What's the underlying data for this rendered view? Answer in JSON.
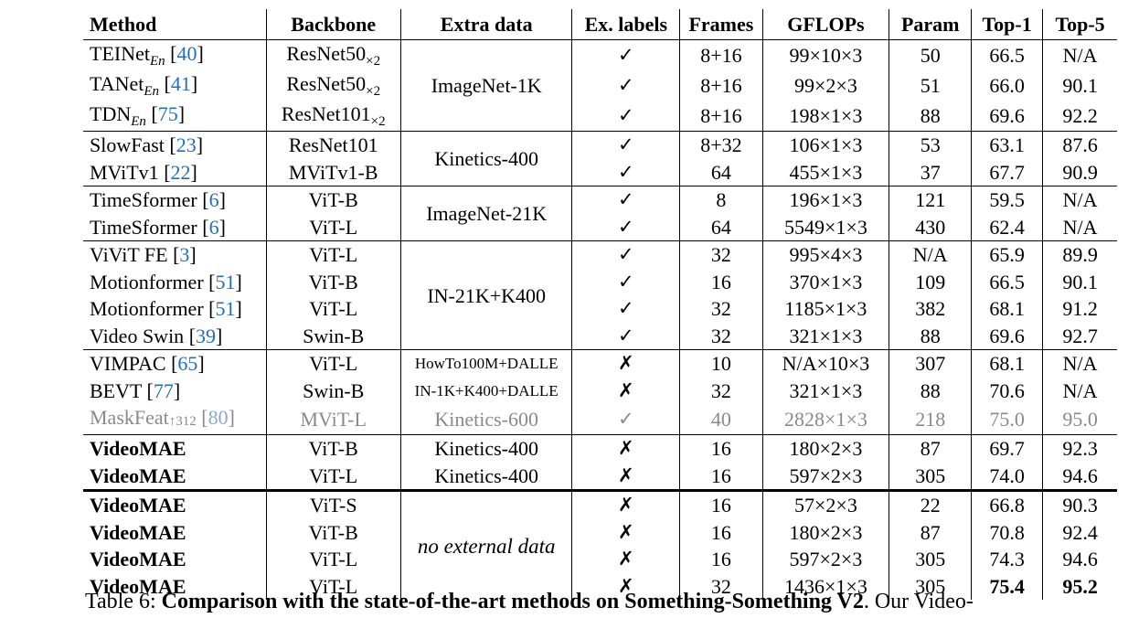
{
  "headers": {
    "method": "Method",
    "backbone": "Backbone",
    "extra": "Extra data",
    "exlabels": "Ex. labels",
    "frames": "Frames",
    "gflops": "GFLOPs",
    "param": "Param",
    "top1": "Top-1",
    "top5": "Top-5"
  },
  "rows": [
    {
      "name": "TEINet",
      "sub": "En",
      "cite": "40",
      "backbone": "ResNet50",
      "bsub": "×2",
      "extra": "ImageNet-1K",
      "lab": "✓",
      "frames": "8+16",
      "gflops": "99×10×3",
      "param": "50",
      "top1": "66.5",
      "top5": "N/A"
    },
    {
      "name": "TANet",
      "sub": "En",
      "cite": "41",
      "backbone": "ResNet50",
      "bsub": "×2",
      "lab": "✓",
      "frames": "8+16",
      "gflops": "99×2×3",
      "param": "51",
      "top1": "66.0",
      "top5": "90.1"
    },
    {
      "name": "TDN",
      "sub": "En",
      "cite": "75",
      "backbone": "ResNet101",
      "bsub": "×2",
      "lab": "✓",
      "frames": "8+16",
      "gflops": "198×1×3",
      "param": "88",
      "top1": "69.6",
      "top5": "92.2"
    },
    {
      "name": "SlowFast",
      "cite": "23",
      "backbone": "ResNet101",
      "extra": "Kinetics-400",
      "lab": "✓",
      "frames": "8+32",
      "gflops": "106×1×3",
      "param": "53",
      "top1": "63.1",
      "top5": "87.6"
    },
    {
      "name": "MViTv1",
      "cite": "22",
      "backbone": "MViTv1-B",
      "lab": "✓",
      "frames": "64",
      "gflops": "455×1×3",
      "param": "37",
      "top1": "67.7",
      "top5": "90.9"
    },
    {
      "name": "TimeSformer",
      "cite": "6",
      "backbone": "ViT-B",
      "extra": "ImageNet-21K",
      "lab": "✓",
      "frames": "8",
      "gflops": "196×1×3",
      "param": "121",
      "top1": "59.5",
      "top5": "N/A"
    },
    {
      "name": "TimeSformer",
      "cite": "6",
      "backbone": "ViT-L",
      "lab": "✓",
      "frames": "64",
      "gflops": "5549×1×3",
      "param": "430",
      "top1": "62.4",
      "top5": "N/A"
    },
    {
      "name": "ViViT FE",
      "cite": "3",
      "backbone": "ViT-L",
      "extra": "IN-21K+K400",
      "lab": "✓",
      "frames": "32",
      "gflops": "995×4×3",
      "param": "N/A",
      "top1": "65.9",
      "top5": "89.9"
    },
    {
      "name": "Motionformer",
      "cite": "51",
      "backbone": "ViT-B",
      "lab": "✓",
      "frames": "16",
      "gflops": "370×1×3",
      "param": "109",
      "top1": "66.5",
      "top5": "90.1"
    },
    {
      "name": "Motionformer",
      "cite": "51",
      "backbone": "ViT-L",
      "lab": "✓",
      "frames": "32",
      "gflops": "1185×1×3",
      "param": "382",
      "top1": "68.1",
      "top5": "91.2"
    },
    {
      "name": "Video Swin",
      "cite": "39",
      "backbone": "Swin-B",
      "lab": "✓",
      "frames": "32",
      "gflops": "321×1×3",
      "param": "88",
      "top1": "69.6",
      "top5": "92.7"
    },
    {
      "name": "VIMPAC",
      "cite": "65",
      "backbone": "ViT-L",
      "extra": "HowTo100M+DALLE",
      "lab": "✗",
      "frames": "10",
      "gflops": "N/A×10×3",
      "param": "307",
      "top1": "68.1",
      "top5": "N/A"
    },
    {
      "name": "BEVT",
      "cite": "77",
      "backbone": "Swin-B",
      "extra": "IN-1K+K400+DALLE",
      "lab": "✗",
      "frames": "32",
      "gflops": "321×1×3",
      "param": "88",
      "top1": "70.6",
      "top5": "N/A"
    },
    {
      "name": "MaskFeat",
      "sup": "↑312",
      "cite": "80",
      "backbone": "MViT-L",
      "extra": "Kinetics-600",
      "lab": "✓",
      "frames": "40",
      "gflops": "2828×1×3",
      "param": "218",
      "top1": "75.0",
      "top5": "95.0"
    },
    {
      "name": "VideoMAE",
      "backbone": "ViT-B",
      "extra": "Kinetics-400",
      "lab": "✗",
      "frames": "16",
      "gflops": "180×2×3",
      "param": "87",
      "top1": "69.7",
      "top5": "92.3"
    },
    {
      "name": "VideoMAE",
      "backbone": "ViT-L",
      "extra": "Kinetics-400",
      "lab": "✗",
      "frames": "16",
      "gflops": "597×2×3",
      "param": "305",
      "top1": "74.0",
      "top5": "94.6"
    },
    {
      "name": "VideoMAE",
      "backbone": "ViT-S",
      "extra": "no external data",
      "lab": "✗",
      "frames": "16",
      "gflops": "57×2×3",
      "param": "22",
      "top1": "66.8",
      "top5": "90.3"
    },
    {
      "name": "VideoMAE",
      "backbone": "ViT-B",
      "lab": "✗",
      "frames": "16",
      "gflops": "180×2×3",
      "param": "87",
      "top1": "70.8",
      "top5": "92.4"
    },
    {
      "name": "VideoMAE",
      "backbone": "ViT-L",
      "lab": "✗",
      "frames": "16",
      "gflops": "597×2×3",
      "param": "305",
      "top1": "74.3",
      "top5": "94.6"
    },
    {
      "name": "VideoMAE",
      "backbone": "ViT-L",
      "lab": "✗",
      "frames": "32",
      "gflops": "1436×1×3",
      "param": "305",
      "top1": "75.4",
      "top5": "95.2"
    }
  ],
  "caption": {
    "label": "Table 6:",
    "bold": "Comparison with the state-of-the-art methods on Something-Something V2",
    "rest": ". Our Video-"
  }
}
